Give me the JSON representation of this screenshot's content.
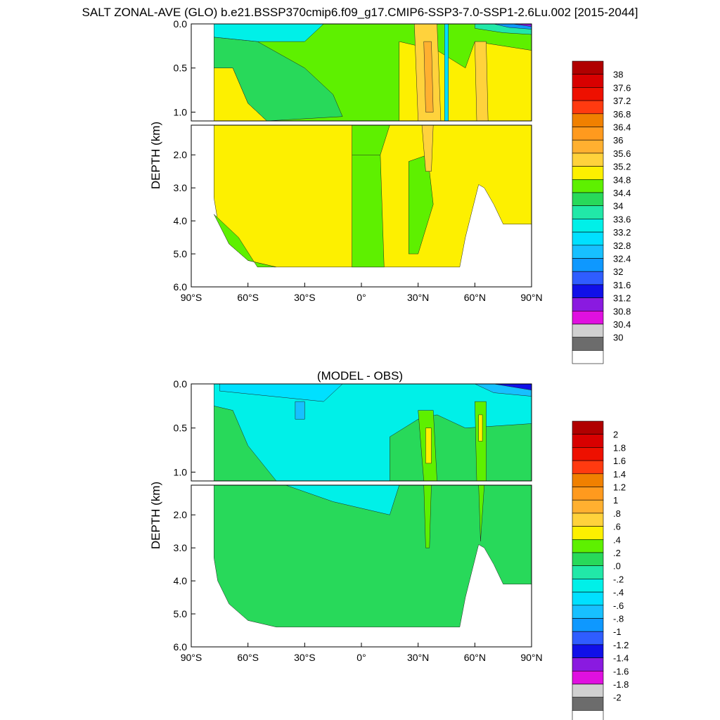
{
  "title": "SALT ZONAL-AVE (GLO) b.e21.BSSP370cmip6.f09_g17.CMIP6-SSP3-7.0-SSP1-2.6Lu.002 [2015-2044]",
  "chart_data": [
    {
      "type": "heatmap",
      "title": "",
      "xlabel": "",
      "ylabel": "DEPTH (km)",
      "x_ticks": [
        "90°S",
        "60°S",
        "30°S",
        "0°",
        "30°N",
        "60°N",
        "90°N"
      ],
      "y_ticks": [
        "0.0",
        "0.5",
        "1.0",
        "2.0",
        "3.0",
        "4.0",
        "5.0",
        "6.0"
      ],
      "xlim": [
        -90,
        90
      ],
      "ylim": [
        6.0,
        0.0
      ],
      "y_break_km": 1.1,
      "colorbar_labels": [
        "38",
        "37.6",
        "37.2",
        "36.8",
        "36.4",
        "36",
        "35.6",
        "35.2",
        "34.8",
        "34.4",
        "34",
        "33.6",
        "33.2",
        "32.8",
        "32.4",
        "32",
        "31.6",
        "31.2",
        "30.8",
        "30.4",
        "30"
      ],
      "colorbar_colors": [
        "#b00000",
        "#d80000",
        "#ee1000",
        "#ff3a10",
        "#f08000",
        "#ff9a1e",
        "#ffb030",
        "#ffd23c",
        "#fdf000",
        "#5ef000",
        "#28d95a",
        "#21e8a8",
        "#00f0e8",
        "#00e0ff",
        "#17c0ff",
        "#0e98ff",
        "#2f5dff",
        "#1010e8",
        "#8a1ae0",
        "#e010e0",
        "#d0d0d0",
        "#6c6c6c",
        "#ffffff"
      ],
      "dominant_values": {
        "surface_0_0.2km": "33.6-34.8",
        "intermediate_0.2_1km": "34.4-34.8",
        "deep_below_1km": "34.8-35.2",
        "subtropical_north_30_40N": "35.2-35.6",
        "arctic_surface": "30-32"
      }
    },
    {
      "type": "heatmap",
      "title": "(MODEL - OBS)",
      "xlabel": "",
      "ylabel": "DEPTH (km)",
      "x_ticks": [
        "90°S",
        "60°S",
        "30°S",
        "0°",
        "30°N",
        "60°N",
        "90°N"
      ],
      "y_ticks": [
        "0.0",
        "0.5",
        "1.0",
        "2.0",
        "3.0",
        "4.0",
        "5.0",
        "6.0"
      ],
      "xlim": [
        -90,
        90
      ],
      "ylim": [
        6.0,
        0.0
      ],
      "y_break_km": 1.1,
      "colorbar_labels": [
        "2",
        "1.8",
        "1.6",
        "1.4",
        "1.2",
        "1",
        ".8",
        ".6",
        ".4",
        ".2",
        ".0",
        "-.2",
        "-.4",
        "-.6",
        "-.8",
        "-1",
        "-1.2",
        "-1.4",
        "-1.6",
        "-1.8",
        "-2"
      ],
      "colorbar_colors": [
        "#b00000",
        "#d80000",
        "#ee1000",
        "#ff3a10",
        "#f08000",
        "#ff9a1e",
        "#ffb030",
        "#ffd23c",
        "#fdf000",
        "#5ef000",
        "#28d95a",
        "#21e8a8",
        "#00f0e8",
        "#00e0ff",
        "#17c0ff",
        "#0e98ff",
        "#2f5dff",
        "#1010e8",
        "#8a1ae0",
        "#e010e0",
        "#d0d0d0",
        "#6c6c6c",
        "#ffffff"
      ],
      "dominant_values": {
        "upper_0_1km": "-0.4 to 0.0",
        "deep_below_1km": "0.0 to 0.2",
        "north_30_40N_and_60N": "0.2 to 0.6",
        "arctic_surface": "-1 to -2"
      }
    }
  ]
}
